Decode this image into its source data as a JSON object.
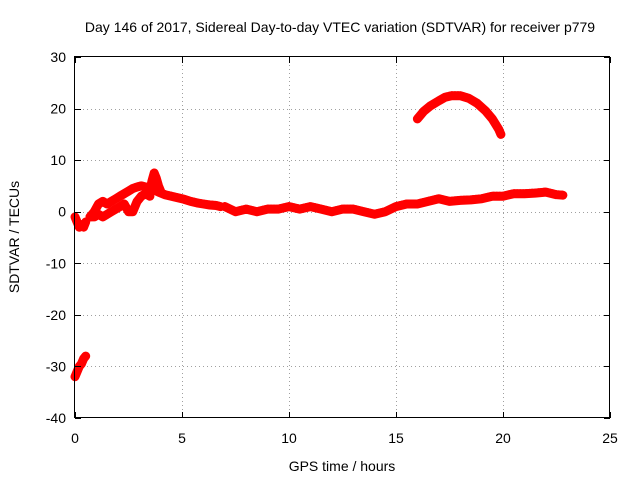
{
  "chart_data": {
    "type": "line",
    "title": "Day 146 of 2017, Sidereal Day-to-day VTEC variation (SDTVAR) for receiver p779",
    "xlabel": "GPS time / hours",
    "ylabel": "SDTVAR / TECUs",
    "xlim": [
      0,
      25
    ],
    "ylim": [
      -40,
      30
    ],
    "xticks": [
      0,
      5,
      10,
      15,
      20,
      25
    ],
    "yticks": [
      -40,
      -30,
      -20,
      -10,
      0,
      10,
      20,
      30
    ],
    "grid": true,
    "legend": "none",
    "color": "#ff0000",
    "series": [
      {
        "name": "satellite-track-1",
        "x": [
          0.0,
          0.1,
          0.2,
          0.3,
          0.4,
          0.5
        ],
        "y": [
          -32,
          -31,
          -30,
          -29.5,
          -28.5,
          -28
        ]
      },
      {
        "name": "satellite-track-2",
        "x": [
          0.0,
          0.1,
          0.2,
          0.3,
          0.4,
          0.5
        ],
        "y": [
          -1,
          -2,
          -3,
          -2.5,
          -3,
          -2
        ]
      },
      {
        "name": "satellite-track-3",
        "x": [
          0.7,
          0.9,
          1.1,
          1.3,
          1.5,
          1.7,
          1.9,
          2.1,
          2.3,
          2.5,
          2.7,
          2.9,
          3.1,
          3.3,
          3.5,
          3.7,
          3.9,
          4.2,
          4.5,
          4.8,
          5.1,
          5.4,
          5.7,
          6.0,
          6.3,
          6.6,
          6.8
        ],
        "y": [
          -1,
          0,
          1.5,
          2,
          1.5,
          2,
          2.5,
          3,
          3.5,
          4,
          4.5,
          4.8,
          5,
          4.8,
          4.5,
          4.2,
          3.8,
          3.3,
          3,
          2.7,
          2.4,
          2,
          1.7,
          1.5,
          1.3,
          1.2,
          1
        ]
      },
      {
        "name": "satellite-track-4",
        "x": [
          0.7,
          0.9,
          1.1,
          1.3,
          1.5,
          1.7,
          1.9,
          2.1,
          2.3,
          2.5,
          2.7,
          2.9,
          3.1,
          3.3,
          3.5
        ],
        "y": [
          -1,
          -1,
          -0.5,
          -1,
          -0.5,
          0,
          0.5,
          1,
          1.5,
          0,
          0,
          2,
          3,
          3.5,
          3
        ]
      },
      {
        "name": "satellite-track-5",
        "x": [
          3.5,
          3.6,
          3.7,
          3.8,
          3.9,
          4.0
        ],
        "y": [
          4,
          6,
          7.5,
          6.5,
          5,
          4
        ]
      },
      {
        "name": "satellite-track-6",
        "x": [
          7.0,
          7.5,
          8.0,
          8.5,
          9.0,
          9.5,
          10.0,
          10.5,
          11.0,
          11.5,
          12.0,
          12.5,
          13.0,
          13.5,
          14.0,
          14.5,
          15.0,
          15.5,
          16.0,
          16.5,
          17.0,
          17.5,
          18.0,
          18.5,
          19.0,
          19.5,
          20.0,
          20.5,
          21.0,
          21.5,
          22.0,
          22.5,
          22.8
        ],
        "y": [
          1,
          0,
          0.5,
          0,
          0.5,
          0.5,
          1,
          0.5,
          1,
          0.5,
          0,
          0.5,
          0.5,
          0,
          -0.5,
          0,
          1,
          1.5,
          1.5,
          2,
          2.5,
          2,
          2.2,
          2.3,
          2.5,
          3,
          3,
          3.5,
          3.5,
          3.6,
          3.8,
          3.3,
          3.2
        ]
      },
      {
        "name": "satellite-track-7",
        "x": [
          16.0,
          16.3,
          16.6,
          17.0,
          17.3,
          17.6,
          18.0,
          18.4,
          18.8,
          19.2,
          19.5,
          19.8,
          19.9
        ],
        "y": [
          18,
          19.5,
          20.5,
          21.5,
          22.2,
          22.5,
          22.5,
          22,
          21,
          19.5,
          18,
          16,
          15
        ]
      }
    ]
  }
}
